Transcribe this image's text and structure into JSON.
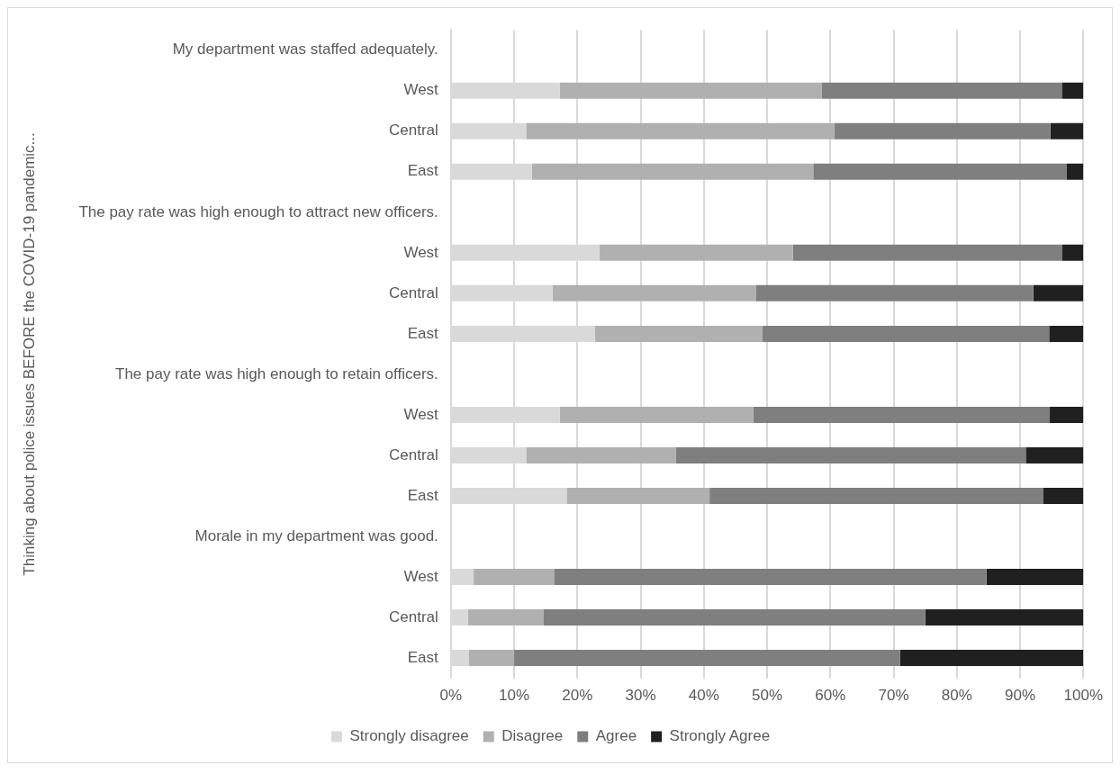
{
  "chart_data": {
    "type": "bar",
    "orientation": "horizontal",
    "stacked": true,
    "ylabel": "Thinking about police issues BEFORE the COVID-19 pandemic...",
    "categories": [
      "My department was staffed adequately.",
      "West",
      "Central",
      "East",
      "The pay rate was high enough to attract new officers.",
      "West",
      "Central",
      "East",
      "The pay rate was high enough to retain officers.",
      "West",
      "Central",
      "East",
      "Morale in my department was good.",
      "West",
      "Central",
      "East"
    ],
    "series": [
      {
        "name": "Strongly disagree",
        "color": "#d9d9d9",
        "values": [
          null,
          17.2,
          11.9,
          12.8,
          null,
          23.5,
          16.1,
          22.8,
          null,
          17.2,
          11.9,
          18.3,
          null,
          3.6,
          2.7,
          2.8
        ]
      },
      {
        "name": "Disagree",
        "color": "#b0b0b0",
        "values": [
          null,
          41.4,
          48.7,
          44.5,
          null,
          30.6,
          32.1,
          26.4,
          null,
          30.6,
          23.7,
          22.6,
          null,
          12.7,
          11.9,
          7.2
        ]
      },
      {
        "name": "Agree",
        "color": "#7f7f7f",
        "values": [
          null,
          38.0,
          34.2,
          40.1,
          null,
          42.5,
          43.9,
          45.4,
          null,
          46.9,
          55.3,
          52.8,
          null,
          68.4,
          60.4,
          61.0
        ]
      },
      {
        "name": "Strongly Agree",
        "color": "#202020",
        "values": [
          null,
          3.4,
          5.2,
          2.6,
          null,
          3.4,
          7.9,
          5.4,
          null,
          5.3,
          9.1,
          6.3,
          null,
          15.3,
          25.0,
          29.0
        ]
      }
    ],
    "xlim": [
      0,
      100
    ],
    "xticks": [
      {
        "value": 0,
        "label": "0%"
      },
      {
        "value": 10,
        "label": "10%"
      },
      {
        "value": 20,
        "label": "20%"
      },
      {
        "value": 30,
        "label": "30%"
      },
      {
        "value": 40,
        "label": "40%"
      },
      {
        "value": 50,
        "label": "50%"
      },
      {
        "value": 60,
        "label": "60%"
      },
      {
        "value": 70,
        "label": "70%"
      },
      {
        "value": 80,
        "label": "80%"
      },
      {
        "value": 90,
        "label": "90%"
      },
      {
        "value": 100,
        "label": "100%"
      }
    ],
    "grid": "x",
    "legend": "bottom"
  }
}
